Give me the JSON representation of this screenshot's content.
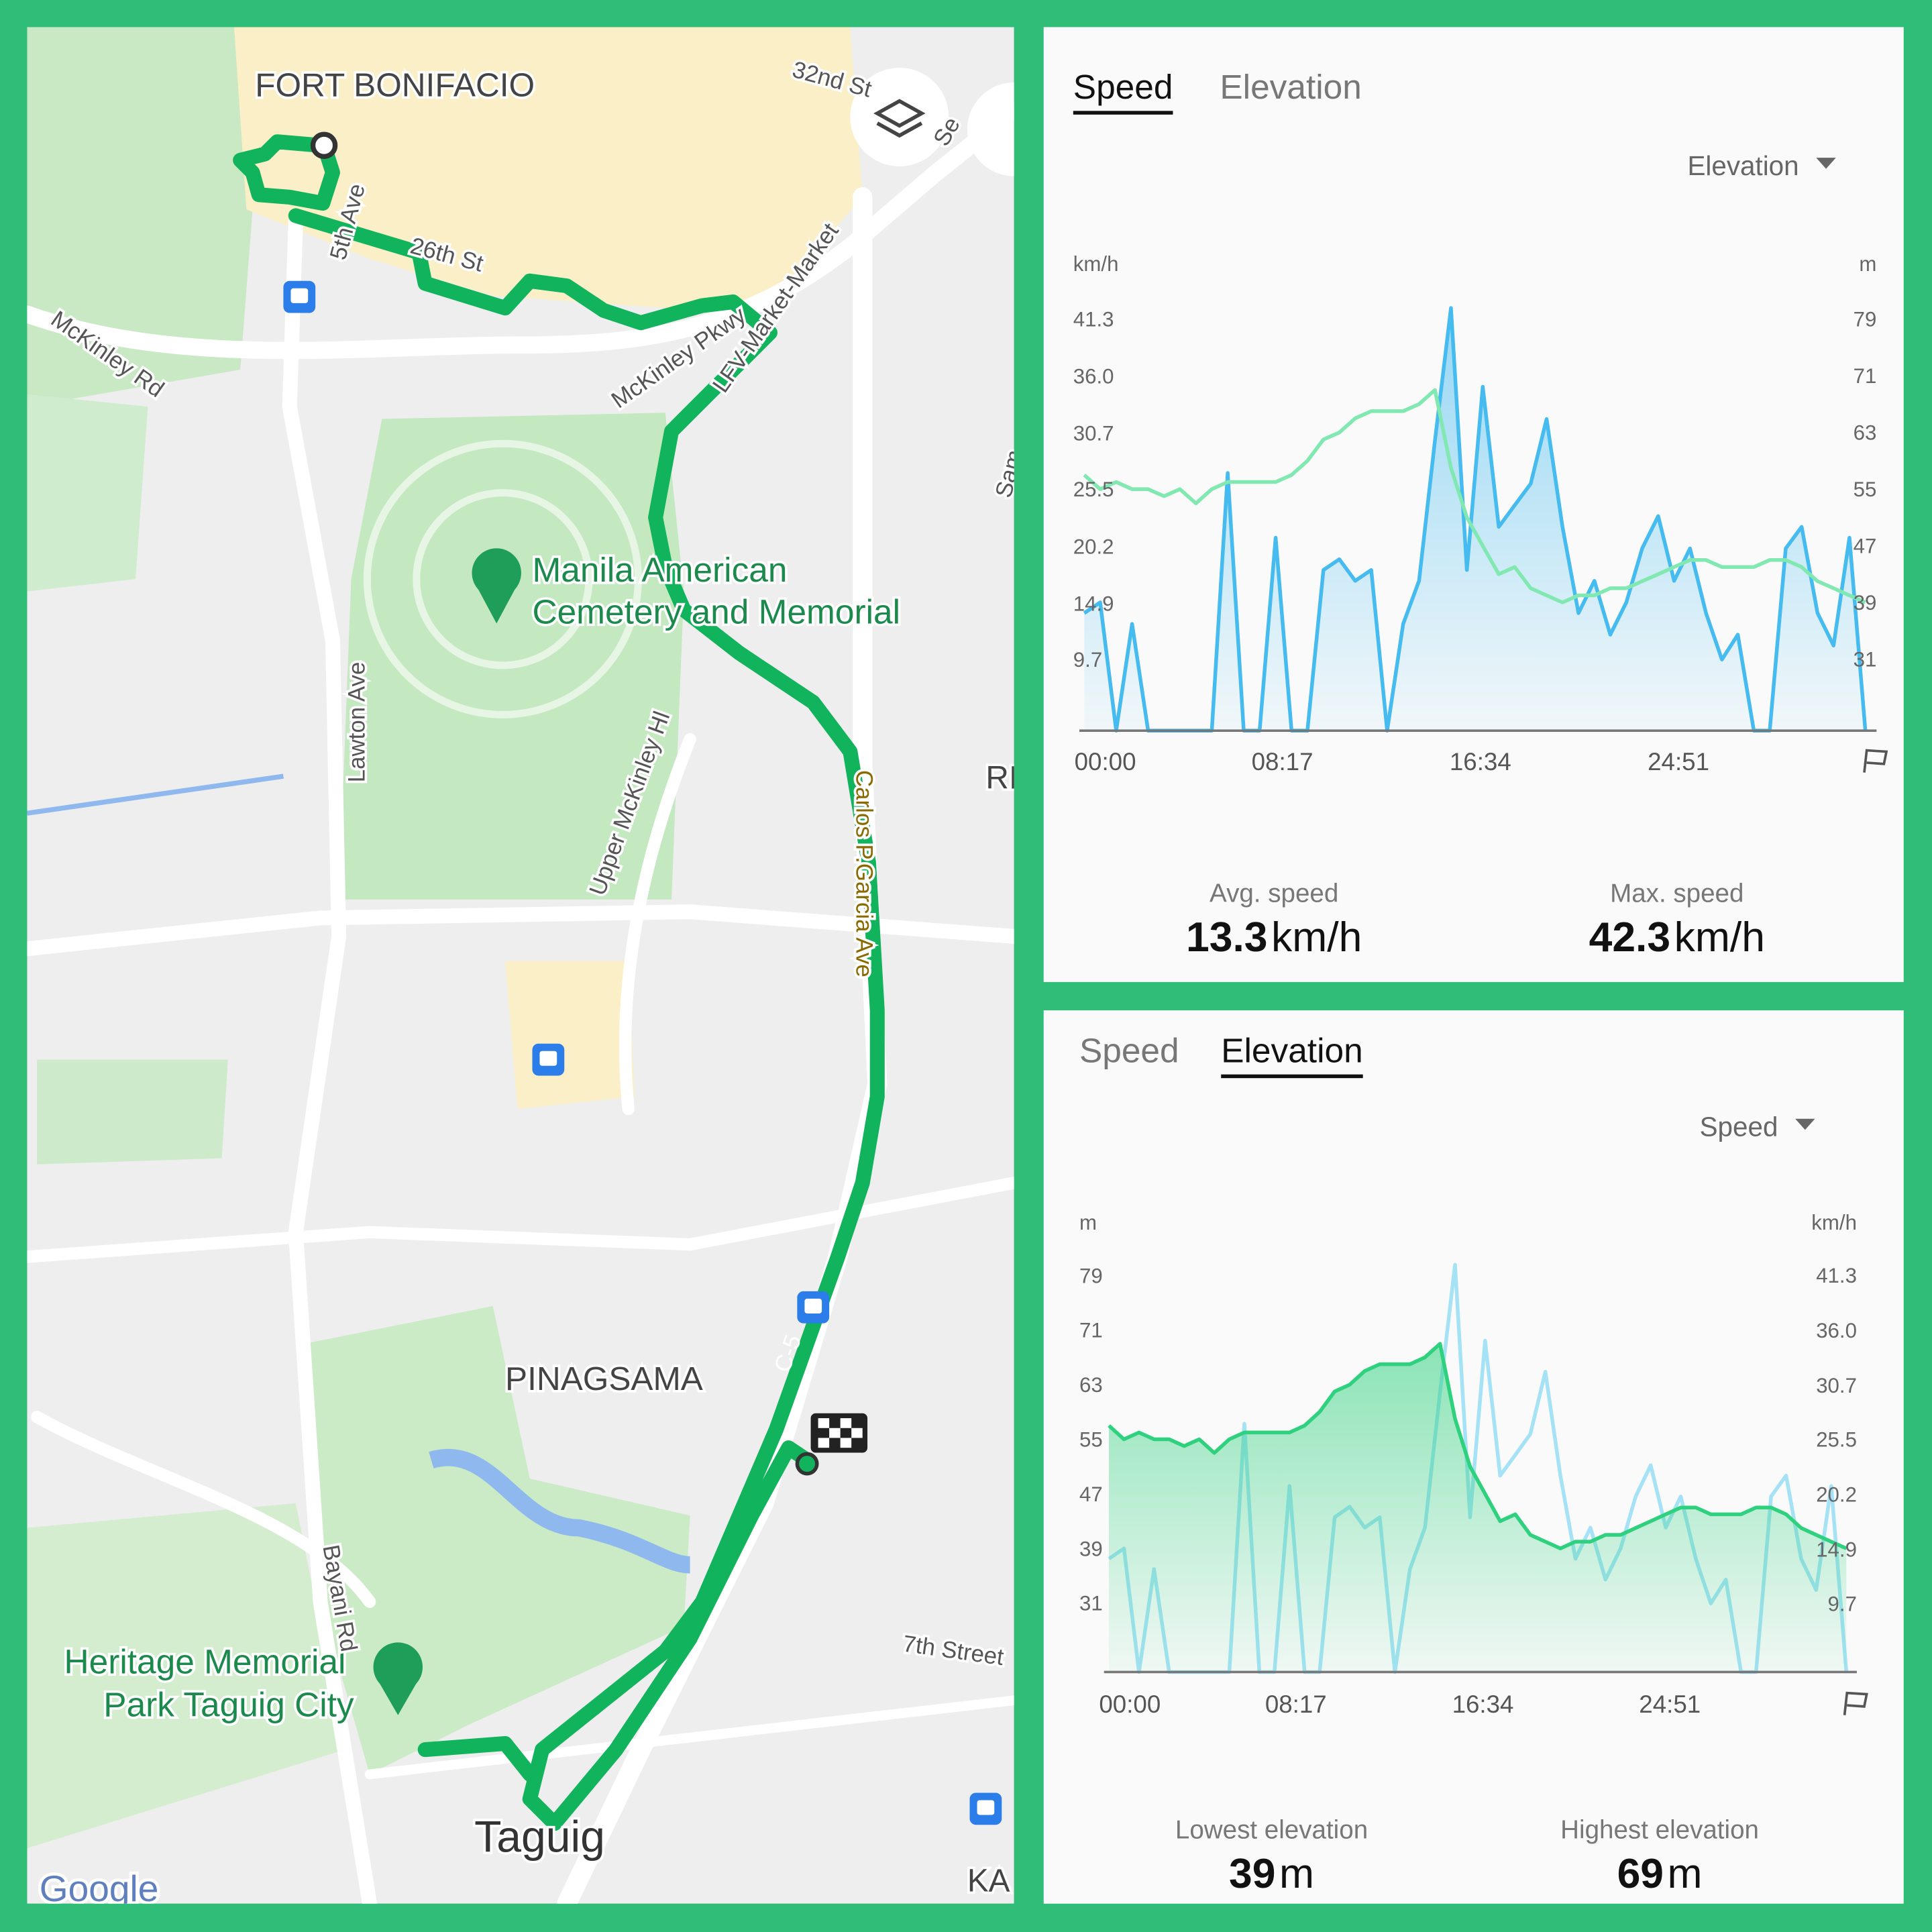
{
  "map": {
    "labels": [
      "FORT BONIFACIO",
      "32nd St",
      "Se",
      "5th Ave",
      "26th St",
      "McKinley Rd",
      "McKinley Pkwy",
      "LFV-Market-Market",
      "Sam",
      "Manila American",
      "Cemetery and Memorial",
      "Lawton Ave",
      "Upper McKinley Hl",
      "Carlos P.Garcia Ave",
      "RI",
      "PINAGSAMA",
      "C-5",
      "Heritage Memorial",
      "Park Taguig City",
      "Bayani Rd",
      "7th Street",
      "Taguig",
      "KA",
      "Google"
    ]
  },
  "chart_data": [
    {
      "type": "line",
      "tabs": [
        "Speed",
        "Elevation"
      ],
      "active_tab": 0,
      "dropdown": "Elevation",
      "y_unit": "km/h",
      "y2_unit": "m",
      "x": [
        0,
        40,
        80,
        120,
        160,
        200,
        240,
        280,
        320,
        360,
        400,
        440,
        480,
        520,
        560,
        600,
        640,
        680,
        720,
        760,
        800,
        840,
        880,
        920,
        960,
        1000,
        1040,
        1080,
        1120,
        1160,
        1200,
        1240,
        1280,
        1320,
        1360,
        1400,
        1440,
        1480,
        1520,
        1560,
        1600,
        1640,
        1680,
        1720,
        1760,
        1800,
        1840,
        1880,
        1920,
        1960
      ],
      "xlim": [
        0,
        1988
      ],
      "xticks": [
        {
          "value": 0,
          "label": "00:00"
        },
        {
          "value": 497,
          "label": "08:17"
        },
        {
          "value": 994,
          "label": "16:34"
        },
        {
          "value": 1491,
          "label": "24:51"
        }
      ],
      "ylim": [
        3.1,
        43.9
      ],
      "yticks": [
        9.7,
        14.9,
        20.2,
        25.5,
        30.7,
        {
          "value": 36,
          "label": "36.0"
        },
        41.3
      ],
      "y2lim": [
        20.9,
        83
      ],
      "y2ticks": [
        31,
        39,
        47,
        55,
        63,
        71,
        79
      ],
      "series": [
        {
          "color": "#45bbef",
          "fill": true,
          "values": [
            14,
            15,
            3.1,
            13,
            3.1,
            3.1,
            3.1,
            3.1,
            3.1,
            27,
            3.1,
            3.1,
            21,
            3.1,
            3.1,
            18,
            19,
            17,
            18,
            3.1,
            13,
            17,
            30,
            42.3,
            18,
            35,
            22,
            24,
            26,
            32,
            22,
            14,
            17,
            12,
            15,
            20,
            23,
            17,
            20,
            14,
            9.7,
            12,
            3.1,
            3.1,
            20,
            22,
            14,
            11,
            21,
            3.1
          ]
        },
        {
          "color": "#82e8b2",
          "fill": false,
          "axis": "y2",
          "values": [
            57,
            55,
            56,
            55,
            55,
            54,
            55,
            53,
            55,
            56,
            56,
            56,
            56,
            57,
            59,
            62,
            63,
            65,
            66,
            66,
            66,
            67,
            69,
            58,
            51,
            47,
            43,
            44,
            41,
            40,
            39,
            40,
            40,
            41,
            41,
            42,
            43,
            44,
            45,
            45,
            44,
            44,
            44,
            45,
            45,
            44,
            42,
            41,
            40,
            39
          ]
        }
      ],
      "stats": [
        {
          "label": "Avg. speed",
          "value": 13.3,
          "unit": "km/h"
        },
        {
          "label": "Max. speed",
          "value": 42.3,
          "unit": "km/h"
        }
      ]
    },
    {
      "type": "line",
      "tabs": [
        "Speed",
        "Elevation"
      ],
      "active_tab": 1,
      "dropdown": "Speed",
      "y_unit": "m",
      "y2_unit": "km/h",
      "x": [
        0,
        40,
        80,
        120,
        160,
        200,
        240,
        280,
        320,
        360,
        400,
        440,
        480,
        520,
        560,
        600,
        640,
        680,
        720,
        760,
        800,
        840,
        880,
        920,
        960,
        1000,
        1040,
        1080,
        1120,
        1160,
        1200,
        1240,
        1280,
        1320,
        1360,
        1400,
        1440,
        1480,
        1520,
        1560,
        1600,
        1640,
        1680,
        1720,
        1760,
        1800,
        1840,
        1880,
        1920,
        1960
      ],
      "xlim": [
        0,
        1988
      ],
      "xticks": [
        {
          "value": 0,
          "label": "00:00"
        },
        {
          "value": 497,
          "label": "08:17"
        },
        {
          "value": 994,
          "label": "16:34"
        },
        {
          "value": 1491,
          "label": "24:51"
        }
      ],
      "ylim": [
        20.9,
        83
      ],
      "yticks": [
        31,
        39,
        47,
        55,
        63,
        71,
        79
      ],
      "y2lim": [
        3.1,
        43.9
      ],
      "y2ticks": [
        9.7,
        14.9,
        20.2,
        25.5,
        30.7,
        {
          "value": 36,
          "label": "36.0"
        },
        41.3
      ],
      "series": [
        {
          "color": "#a6e2f6",
          "fill": false,
          "axis": "y2",
          "values": [
            14,
            15,
            3.1,
            13,
            3.1,
            3.1,
            3.1,
            3.1,
            3.1,
            27,
            3.1,
            3.1,
            21,
            3.1,
            3.1,
            18,
            19,
            17,
            18,
            3.1,
            13,
            17,
            30,
            42.3,
            18,
            35,
            22,
            24,
            26,
            32,
            22,
            14,
            17,
            12,
            15,
            20,
            23,
            17,
            20,
            14,
            9.7,
            12,
            3.1,
            3.1,
            20,
            22,
            14,
            11,
            21,
            3.1
          ]
        },
        {
          "color": "#2fd17e",
          "fill": true,
          "values": [
            57,
            55,
            56,
            55,
            55,
            54,
            55,
            53,
            55,
            56,
            56,
            56,
            56,
            57,
            59,
            62,
            63,
            65,
            66,
            66,
            66,
            67,
            69,
            58,
            51,
            47,
            43,
            44,
            41,
            40,
            39,
            40,
            40,
            41,
            41,
            42,
            43,
            44,
            45,
            45,
            44,
            44,
            44,
            45,
            45,
            44,
            42,
            41,
            40,
            39
          ]
        }
      ],
      "stats": [
        {
          "label": "Lowest elevation",
          "value": 39,
          "unit": "m"
        },
        {
          "label": "Highest elevation",
          "value": 69,
          "unit": "m"
        }
      ]
    }
  ]
}
